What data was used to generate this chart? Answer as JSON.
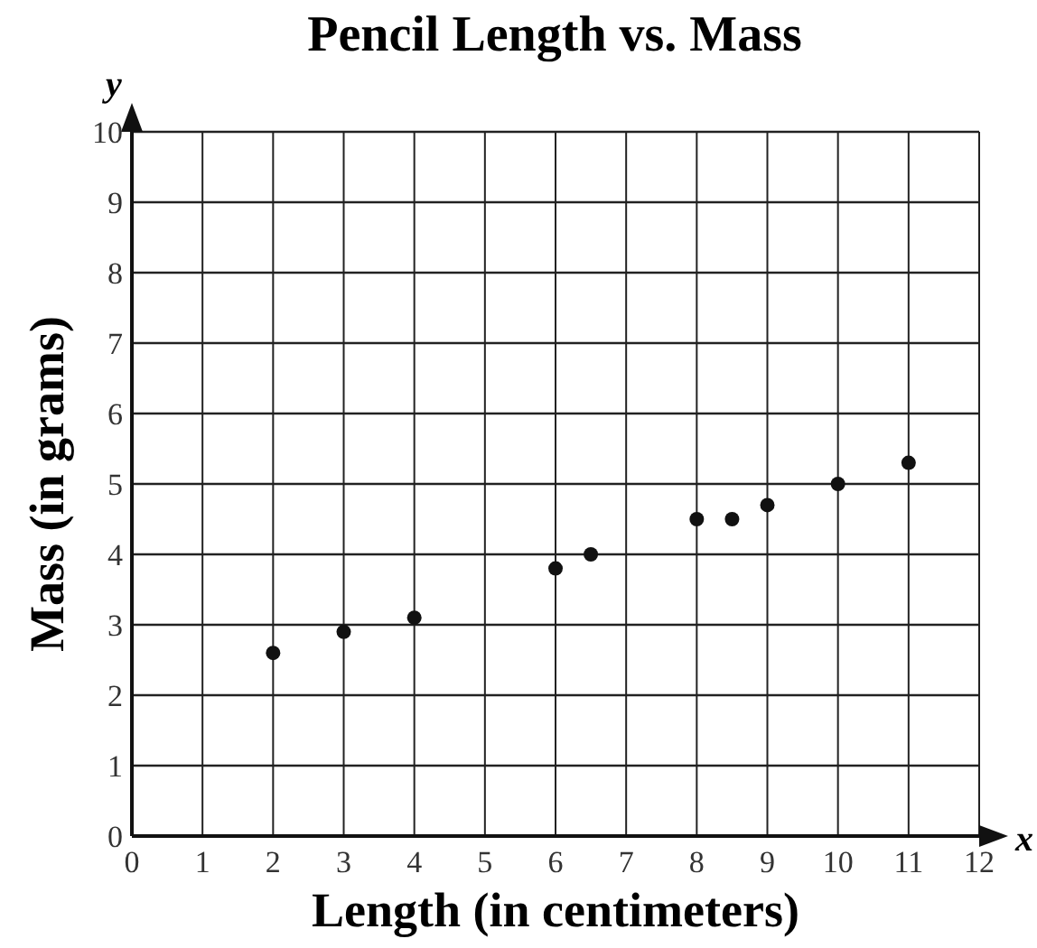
{
  "chart_data": {
    "type": "scatter",
    "title": "Pencil Length vs. Mass",
    "xlabel": "Length (in centimeters)",
    "ylabel": "Mass (in grams)",
    "annotations": [
      "x",
      "y"
    ],
    "x": [
      2,
      3,
      4,
      6,
      6.5,
      8,
      8.5,
      9,
      10,
      11
    ],
    "values": [
      2.6,
      2.9,
      3.1,
      3.8,
      4,
      4.5,
      4.5,
      4.7,
      5,
      5.3
    ],
    "color": "#111111",
    "marker": "circle",
    "xlim": [
      0,
      12
    ],
    "xticks": [
      0,
      1,
      2,
      3,
      4,
      5,
      6,
      7,
      8,
      9,
      10,
      11,
      12
    ],
    "ylim": [
      0,
      10
    ],
    "yticks": [
      0,
      1,
      2,
      3,
      4,
      5,
      6,
      7,
      8,
      9,
      10
    ],
    "grid": true
  }
}
